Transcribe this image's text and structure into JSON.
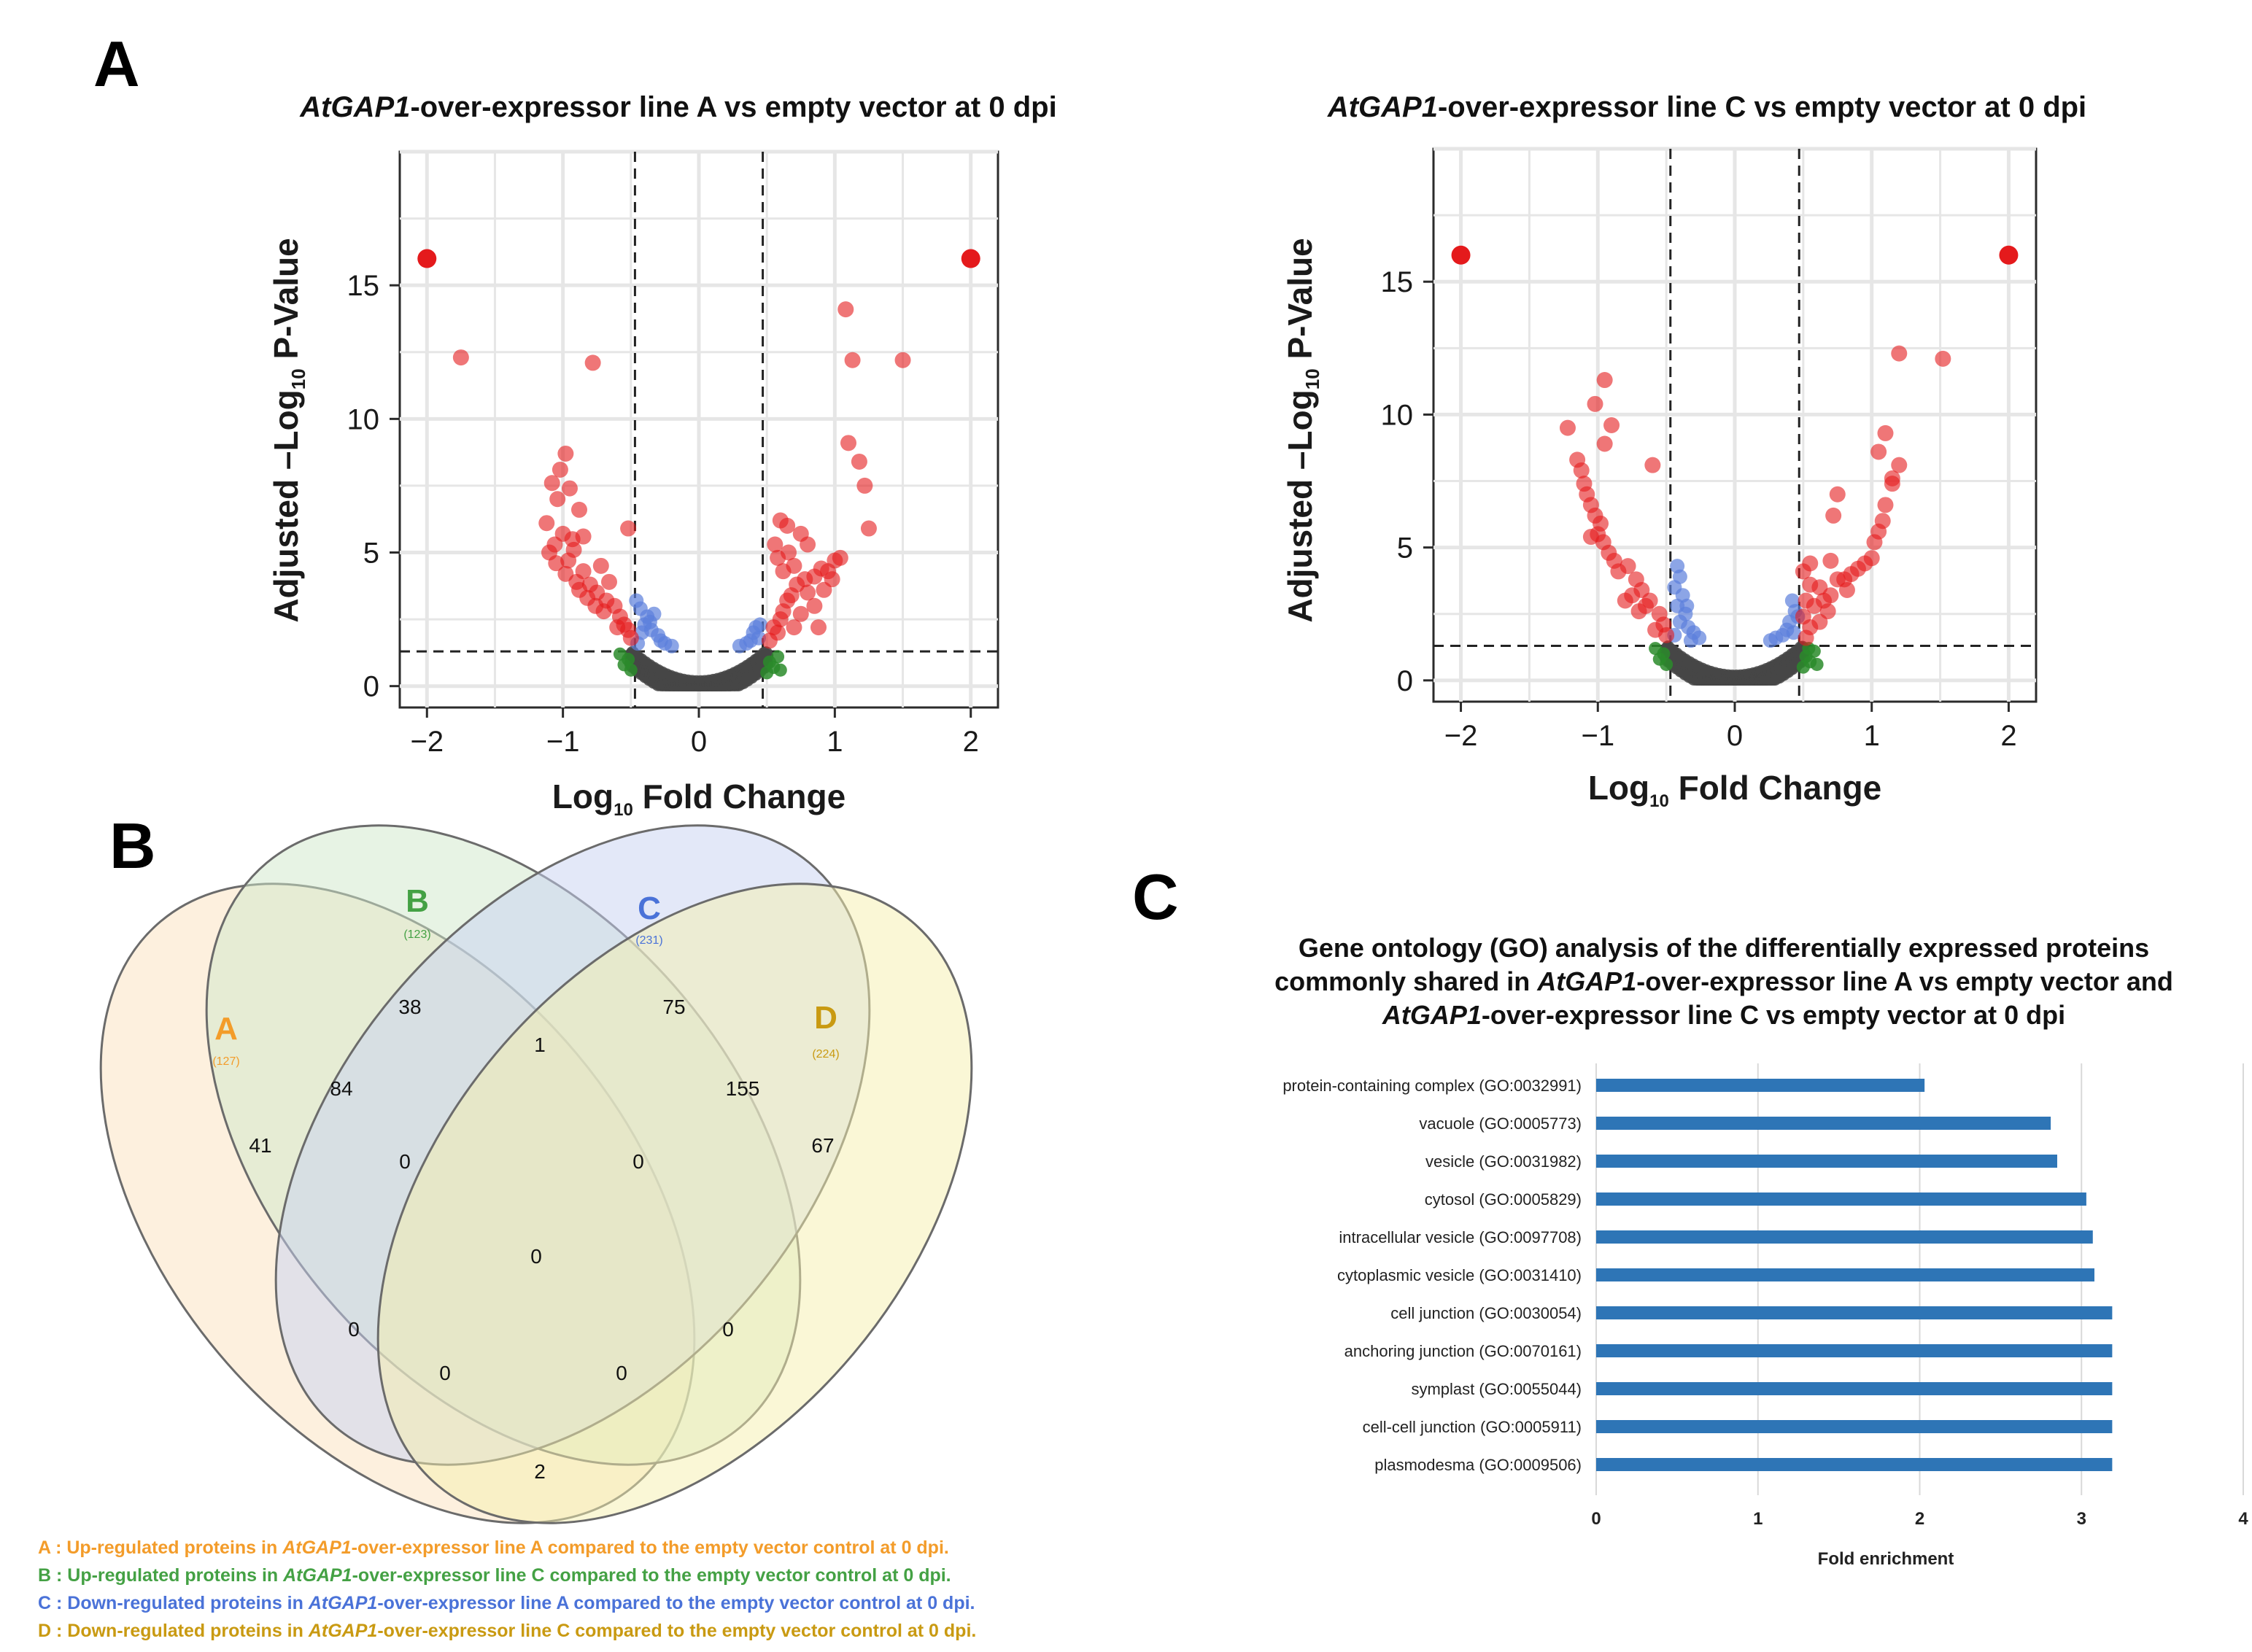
{
  "panel_letters": {
    "a": "A",
    "b": "B",
    "c": "C"
  },
  "colors": {
    "significant": "#e41a1c",
    "p_only": "#5b7fdc",
    "fc_only": "#2a8b2a",
    "nonsig": "#474747",
    "bar": "#2e75b6",
    "set_a": "#f39c2a",
    "set_b": "#44a144",
    "set_c": "#4a72d8",
    "set_d": "#c99a12"
  },
  "chart_data": [
    {
      "type": "scatter",
      "title_italic": "AtGAP1",
      "title_rest": "-over-expressor line A vs empty vector at 0 dpi",
      "xlabel": "Log 10 Fold Change",
      "ylabel": "Adjusted –Log 10 P-Value",
      "xlim": [
        -2.2,
        2.2
      ],
      "ylim": [
        -0.8,
        20
      ],
      "xticks": [
        -2,
        -1,
        0,
        1,
        2
      ],
      "yticks": [
        0,
        5,
        10,
        15
      ],
      "fc_cutoff": 0.47,
      "p_cutoff": 1.3,
      "significant_points": [
        [
          -2.0,
          16.0
        ],
        [
          -1.75,
          12.3
        ],
        [
          -0.78,
          12.1
        ],
        [
          -0.98,
          8.7
        ],
        [
          -1.02,
          8.1
        ],
        [
          -1.08,
          7.6
        ],
        [
          -1.04,
          7.0
        ],
        [
          -0.95,
          7.4
        ],
        [
          -0.88,
          6.6
        ],
        [
          -1.12,
          6.1
        ],
        [
          -1.0,
          5.7
        ],
        [
          -0.93,
          5.5
        ],
        [
          -0.52,
          5.9
        ],
        [
          -0.85,
          5.6
        ],
        [
          -1.1,
          5.0
        ],
        [
          -1.05,
          4.6
        ],
        [
          -0.98,
          4.2
        ],
        [
          -0.9,
          3.9
        ],
        [
          -0.85,
          4.3
        ],
        [
          -0.72,
          4.5
        ],
        [
          -0.8,
          3.8
        ],
        [
          -0.75,
          3.5
        ],
        [
          -0.68,
          3.2
        ],
        [
          -0.62,
          3.0
        ],
        [
          -0.58,
          2.6
        ],
        [
          -0.55,
          2.3
        ],
        [
          -0.52,
          2.1
        ],
        [
          -0.5,
          1.8
        ],
        [
          -0.6,
          2.2
        ],
        [
          -0.7,
          2.8
        ],
        [
          -0.76,
          3.0
        ],
        [
          -0.82,
          3.3
        ],
        [
          -0.88,
          3.6
        ],
        [
          -0.96,
          4.7
        ],
        [
          -1.06,
          5.3
        ],
        [
          -0.92,
          5.1
        ],
        [
          -0.66,
          3.9
        ],
        [
          0.58,
          2.0
        ],
        [
          0.6,
          2.5
        ],
        [
          0.52,
          1.7
        ],
        [
          0.55,
          2.2
        ],
        [
          0.62,
          2.8
        ],
        [
          0.65,
          3.2
        ],
        [
          0.62,
          4.3
        ],
        [
          0.58,
          4.8
        ],
        [
          0.56,
          5.3
        ],
        [
          0.6,
          6.2
        ],
        [
          0.65,
          6.0
        ],
        [
          0.75,
          5.7
        ],
        [
          0.8,
          5.3
        ],
        [
          0.7,
          4.5
        ],
        [
          0.72,
          3.8
        ],
        [
          0.8,
          3.5
        ],
        [
          0.85,
          4.1
        ],
        [
          0.9,
          4.4
        ],
        [
          0.95,
          4.3
        ],
        [
          0.85,
          3.0
        ],
        [
          0.92,
          3.6
        ],
        [
          0.98,
          4.0
        ],
        [
          1.0,
          4.7
        ],
        [
          1.04,
          4.8
        ],
        [
          0.75,
          2.7
        ],
        [
          0.68,
          3.4
        ],
        [
          0.78,
          4.0
        ],
        [
          0.66,
          5.0
        ],
        [
          1.08,
          14.1
        ],
        [
          1.13,
          12.2
        ],
        [
          1.1,
          9.1
        ],
        [
          1.18,
          8.4
        ],
        [
          1.22,
          7.5
        ],
        [
          1.5,
          12.2
        ],
        [
          1.25,
          5.9
        ],
        [
          2.0,
          16.0
        ],
        [
          0.88,
          2.2
        ],
        [
          0.7,
          2.2
        ]
      ],
      "p_only_points": [
        [
          -0.46,
          3.2
        ],
        [
          -0.43,
          2.9
        ],
        [
          -0.38,
          2.6
        ],
        [
          -0.4,
          2.3
        ],
        [
          -0.35,
          2.1
        ],
        [
          -0.3,
          1.9
        ],
        [
          -0.28,
          1.7
        ],
        [
          -0.25,
          1.6
        ],
        [
          -0.33,
          2.7
        ],
        [
          -0.36,
          2.4
        ],
        [
          -0.42,
          2.0
        ],
        [
          -0.2,
          1.5
        ],
        [
          -0.45,
          1.6
        ],
        [
          0.4,
          2.0
        ],
        [
          0.38,
          1.7
        ],
        [
          0.35,
          1.6
        ],
        [
          0.42,
          2.2
        ],
        [
          0.3,
          1.5
        ],
        [
          0.44,
          1.8
        ],
        [
          0.45,
          2.3
        ]
      ],
      "fc_only_points": [
        [
          -0.52,
          1.0
        ],
        [
          -0.55,
          0.8
        ],
        [
          -0.5,
          0.6
        ],
        [
          -0.58,
          1.2
        ],
        [
          0.52,
          0.9
        ],
        [
          0.55,
          0.7
        ],
        [
          0.5,
          0.5
        ],
        [
          0.58,
          1.1
        ],
        [
          0.6,
          0.6
        ]
      ]
    },
    {
      "type": "scatter",
      "title_italic": "AtGAP1",
      "title_rest": "-over-expressor line C vs empty vector at 0 dpi",
      "xlabel": "Log 10 Fold Change",
      "ylabel": "Adjusted –Log 10 P-Value",
      "xlim": [
        -2.2,
        2.2
      ],
      "ylim": [
        -0.8,
        20
      ],
      "xticks": [
        -2,
        -1,
        0,
        1,
        2
      ],
      "yticks": [
        0,
        5,
        10,
        15
      ],
      "fc_cutoff": 0.47,
      "p_cutoff": 1.3,
      "significant_points": [
        [
          -2.0,
          16.0
        ],
        [
          -0.95,
          11.3
        ],
        [
          -1.02,
          10.4
        ],
        [
          -0.9,
          9.6
        ],
        [
          -1.22,
          9.5
        ],
        [
          -1.15,
          8.3
        ],
        [
          -1.12,
          7.9
        ],
        [
          -0.95,
          8.9
        ],
        [
          -1.1,
          7.4
        ],
        [
          -1.08,
          7.0
        ],
        [
          -1.05,
          6.6
        ],
        [
          -1.02,
          6.2
        ],
        [
          -0.98,
          5.9
        ],
        [
          -1.0,
          5.5
        ],
        [
          -0.96,
          5.2
        ],
        [
          -0.92,
          4.8
        ],
        [
          -0.88,
          4.5
        ],
        [
          -0.85,
          4.1
        ],
        [
          -0.6,
          8.1
        ],
        [
          -0.78,
          4.3
        ],
        [
          -0.72,
          3.8
        ],
        [
          -0.68,
          3.4
        ],
        [
          -0.62,
          3.0
        ],
        [
          -0.55,
          2.5
        ],
        [
          -0.52,
          2.1
        ],
        [
          -0.5,
          1.7
        ],
        [
          -0.58,
          1.9
        ],
        [
          -0.7,
          2.6
        ],
        [
          -0.8,
          3.0
        ],
        [
          -0.75,
          3.2
        ],
        [
          -0.65,
          2.8
        ],
        [
          -1.05,
          5.4
        ],
        [
          0.52,
          1.6
        ],
        [
          0.55,
          2.0
        ],
        [
          0.5,
          2.4
        ],
        [
          0.52,
          3.0
        ],
        [
          0.55,
          3.6
        ],
        [
          0.5,
          4.1
        ],
        [
          0.55,
          4.4
        ],
        [
          0.62,
          3.5
        ],
        [
          0.58,
          2.8
        ],
        [
          0.62,
          2.2
        ],
        [
          0.68,
          2.6
        ],
        [
          0.7,
          3.2
        ],
        [
          0.75,
          3.8
        ],
        [
          0.7,
          4.5
        ],
        [
          0.72,
          6.2
        ],
        [
          0.75,
          7.0
        ],
        [
          0.8,
          3.8
        ],
        [
          0.85,
          4.0
        ],
        [
          0.9,
          4.2
        ],
        [
          0.95,
          4.4
        ],
        [
          1.0,
          4.6
        ],
        [
          1.02,
          5.2
        ],
        [
          1.05,
          5.6
        ],
        [
          1.08,
          6.0
        ],
        [
          1.1,
          6.6
        ],
        [
          1.15,
          7.4
        ],
        [
          1.05,
          8.6
        ],
        [
          1.1,
          9.3
        ],
        [
          1.2,
          8.1
        ],
        [
          1.15,
          7.6
        ],
        [
          1.2,
          12.3
        ],
        [
          1.52,
          12.1
        ],
        [
          2.0,
          16.0
        ],
        [
          0.65,
          3.0
        ],
        [
          0.82,
          3.4
        ]
      ],
      "p_only_points": [
        [
          -0.42,
          4.3
        ],
        [
          -0.4,
          3.9
        ],
        [
          -0.44,
          3.5
        ],
        [
          -0.38,
          3.2
        ],
        [
          -0.42,
          2.8
        ],
        [
          -0.36,
          2.5
        ],
        [
          -0.4,
          2.2
        ],
        [
          -0.34,
          2.0
        ],
        [
          -0.3,
          1.8
        ],
        [
          -0.26,
          1.6
        ],
        [
          -0.32,
          1.5
        ],
        [
          -0.44,
          1.7
        ],
        [
          -0.35,
          2.8
        ],
        [
          0.42,
          3.0
        ],
        [
          0.44,
          2.6
        ],
        [
          0.4,
          2.2
        ],
        [
          0.38,
          1.9
        ],
        [
          0.35,
          1.7
        ],
        [
          0.3,
          1.6
        ],
        [
          0.26,
          1.5
        ],
        [
          0.43,
          1.8
        ],
        [
          0.46,
          2.4
        ]
      ],
      "fc_only_points": [
        [
          -0.52,
          1.0
        ],
        [
          -0.55,
          0.8
        ],
        [
          -0.5,
          0.6
        ],
        [
          -0.58,
          1.2
        ],
        [
          0.52,
          0.9
        ],
        [
          0.55,
          0.7
        ],
        [
          0.5,
          0.5
        ],
        [
          0.58,
          1.1
        ],
        [
          0.6,
          0.6
        ],
        [
          0.54,
          1.2
        ]
      ]
    },
    {
      "type": "bar",
      "orientation": "horizontal",
      "title_line1": "Gene ontology (GO) analysis of the differentially expressed proteins",
      "title_line2_pre": "commonly shared in ",
      "title_line2_italic": "AtGAP1",
      "title_line2_post": "-over-expressor line A vs empty vector and",
      "title_line3_italic": "AtGAP1",
      "title_line3_post": "-over-expressor line C vs empty vector at 0 dpi",
      "xlabel": "Fold enrichment",
      "xlim": [
        0,
        4
      ],
      "xticks": [
        0,
        1,
        2,
        3,
        4
      ],
      "categories": [
        "protein-containing complex (GO:0032991)",
        "vacuole (GO:0005773)",
        "vesicle (GO:0031982)",
        "cytosol (GO:0005829)",
        "intracellular vesicle (GO:0097708)",
        "cytoplasmic vesicle (GO:0031410)",
        "cell junction (GO:0030054)",
        "anchoring junction (GO:0070161)",
        "symplast (GO:0055044)",
        "cell-cell junction (GO:0005911)",
        "plasmodesma (GO:0009506)"
      ],
      "values": [
        2.03,
        2.81,
        2.85,
        3.03,
        3.07,
        3.08,
        3.19,
        3.19,
        3.19,
        3.19,
        3.19
      ]
    }
  ],
  "venn": {
    "sets": [
      {
        "key": "A",
        "label": "A",
        "total": "(127)"
      },
      {
        "key": "B",
        "label": "B",
        "total": "(123)"
      },
      {
        "key": "C",
        "label": "C",
        "total": "(231)"
      },
      {
        "key": "D",
        "label": "D",
        "total": "(224)"
      }
    ],
    "counts": {
      "a_only": "41",
      "b_only": "38",
      "c_only": "75",
      "d_only": "67",
      "ab": "84",
      "bc": "1",
      "cd": "155",
      "abc": "0",
      "bcd": "0",
      "abcd": "0",
      "ac": "0",
      "bd": "0",
      "acd": "0",
      "abd": "0",
      "ad": "2"
    },
    "legend": [
      {
        "prefix": "A : Up-regulated proteins in ",
        "italic": "AtGAP1",
        "suffix": "-over-expressor line A compared to the empty vector control at 0 dpi."
      },
      {
        "prefix": "B : Up-regulated proteins in ",
        "italic": "AtGAP1",
        "suffix": "-over-expressor line C compared to the empty vector control at 0 dpi."
      },
      {
        "prefix": "C : Down-regulated proteins in ",
        "italic": "AtGAP1",
        "suffix": "-over-expressor line A compared to the empty vector control at 0 dpi."
      },
      {
        "prefix": "D : Down-regulated proteins in ",
        "italic": "AtGAP1",
        "suffix": "-over-expressor line C compared to the empty vector control at 0 dpi."
      }
    ]
  }
}
